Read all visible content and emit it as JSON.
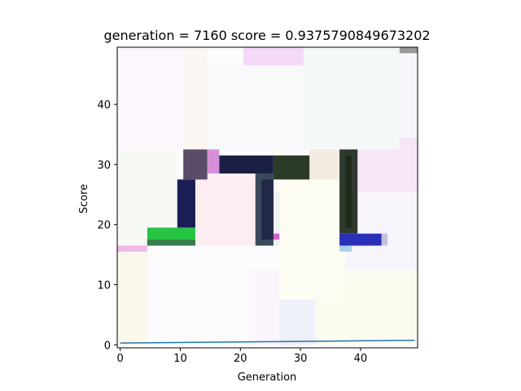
{
  "chart_data": {
    "type": "heatmap",
    "title": "generation = 7160  score = 0.9375790849673202",
    "xlabel": "Generation",
    "ylabel": "Score",
    "xlim": [
      -0.5,
      49.5
    ],
    "ylim": [
      49.5,
      -0.5
    ],
    "x_ticks": [
      0,
      10,
      20,
      30,
      40
    ],
    "y_ticks": [
      0,
      10,
      20,
      30,
      40
    ],
    "grid": false,
    "legend": "none",
    "image_rects": [
      {
        "x0": -0.5,
        "y0": -0.5,
        "x1": 49.5,
        "y1": 49.5,
        "color": "#fdfbfb"
      },
      {
        "x0": -0.5,
        "y0": 0,
        "x1": 4.5,
        "y1": 15.5,
        "color": "#fbf7ea"
      },
      {
        "x0": -0.5,
        "y0": 15.5,
        "x1": 4.5,
        "y1": 16.5,
        "color": "#efb8ea"
      },
      {
        "x0": 4.5,
        "y0": 0,
        "x1": 21.5,
        "y1": 16.5,
        "color": "#fbfbfd"
      },
      {
        "x0": 21.5,
        "y0": 0,
        "x1": 26.5,
        "y1": 12.5,
        "color": "#faf4fd"
      },
      {
        "x0": 26.5,
        "y0": 0,
        "x1": 32.5,
        "y1": 7.5,
        "color": "#eef0fa"
      },
      {
        "x0": 32.5,
        "y0": 0,
        "x1": 49.5,
        "y1": 12.5,
        "color": "#fcfbef"
      },
      {
        "x0": 26.5,
        "y0": 7.5,
        "x1": 37.5,
        "y1": 27.5,
        "color": "#fcfcf2"
      },
      {
        "x0": 37.5,
        "y0": 12.5,
        "x1": 49.5,
        "y1": 25.5,
        "color": "#f8f4fb"
      },
      {
        "x0": 37.5,
        "y0": 25.5,
        "x1": 49.5,
        "y1": 34.5,
        "color": "#f6e6f6"
      },
      {
        "x0": -0.5,
        "y0": 16.5,
        "x1": 9.5,
        "y1": 32.5,
        "color": "#f6f9f4"
      },
      {
        "x0": 12.5,
        "y0": 16.5,
        "x1": 22.5,
        "y1": 28.5,
        "color": "#fcedf0"
      },
      {
        "x0": 22.5,
        "y0": 16.5,
        "x1": 26.5,
        "y1": 25.5,
        "color": "#eff2f4"
      },
      {
        "x0": 31.5,
        "y0": 27.5,
        "x1": 36.5,
        "y1": 32.5,
        "color": "#f4ebe0"
      },
      {
        "x0": -0.5,
        "y0": 32.5,
        "x1": 10.5,
        "y1": 49.5,
        "color": "#fdf6fd"
      },
      {
        "x0": 10.5,
        "y0": 32.5,
        "x1": 14.5,
        "y1": 49.5,
        "color": "#fcf6f2"
      },
      {
        "x0": 14.5,
        "y0": 32.5,
        "x1": 30.5,
        "y1": 46.5,
        "color": "#f7f9fb"
      },
      {
        "x0": 30.5,
        "y0": 32.5,
        "x1": 46.5,
        "y1": 49.5,
        "color": "#f4f8f7"
      },
      {
        "x0": 46.5,
        "y0": 34.5,
        "x1": 49.5,
        "y1": 48.5,
        "color": "#f9f7fb"
      },
      {
        "x0": 20.5,
        "y0": 46.5,
        "x1": 30.5,
        "y1": 49.5,
        "color": "#f5daf8"
      },
      {
        "x0": 46.5,
        "y0": 48.5,
        "x1": 49.5,
        "y1": 49.5,
        "color": "#9a9a9a"
      },
      {
        "x0": 4.5,
        "y0": 16.5,
        "x1": 12.5,
        "y1": 19.5,
        "color": "#28c443"
      },
      {
        "x0": 4.5,
        "y0": 16.5,
        "x1": 12.5,
        "y1": 17.5,
        "color": "#3a7c4c"
      },
      {
        "x0": 9.5,
        "y0": 19.5,
        "x1": 12.5,
        "y1": 27.5,
        "color": "#1c1d55"
      },
      {
        "x0": 10.5,
        "y0": 27.5,
        "x1": 14.5,
        "y1": 32.5,
        "color": "#5a4d6a"
      },
      {
        "x0": 14.5,
        "y0": 28.5,
        "x1": 16.5,
        "y1": 32.5,
        "color": "#d690d8"
      },
      {
        "x0": 16.5,
        "y0": 28.5,
        "x1": 25.5,
        "y1": 31.5,
        "color": "#1c1f44"
      },
      {
        "x0": 22.5,
        "y0": 16.5,
        "x1": 25.5,
        "y1": 28.5,
        "color": "#3a4a5c"
      },
      {
        "x0": 23.5,
        "y0": 17.5,
        "x1": 25.5,
        "y1": 27.5,
        "color": "#222848"
      },
      {
        "x0": 25.5,
        "y0": 17.5,
        "x1": 26.5,
        "y1": 18.5,
        "color": "#d060c8"
      },
      {
        "x0": 25.5,
        "y0": 27.5,
        "x1": 31.5,
        "y1": 31.5,
        "color": "#2b3b28"
      },
      {
        "x0": 36.5,
        "y0": 18.5,
        "x1": 39.5,
        "y1": 32.5,
        "color": "#2e3a2e"
      },
      {
        "x0": 37.5,
        "y0": 19.5,
        "x1": 38.5,
        "y1": 31.5,
        "color": "#1f2a1a"
      },
      {
        "x0": 36.5,
        "y0": 16.5,
        "x1": 43.5,
        "y1": 18.5,
        "color": "#2a2fb8"
      },
      {
        "x0": 36.5,
        "y0": 15.5,
        "x1": 38.5,
        "y1": 16.5,
        "color": "#a8d0e8"
      },
      {
        "x0": 43.5,
        "y0": 16.5,
        "x1": 44.5,
        "y1": 18.5,
        "color": "#c8c0d8"
      }
    ],
    "series": [
      {
        "color": "#1f77b4",
        "x": [
          0,
          49
        ],
        "y": [
          0.3,
          0.75
        ]
      }
    ]
  }
}
